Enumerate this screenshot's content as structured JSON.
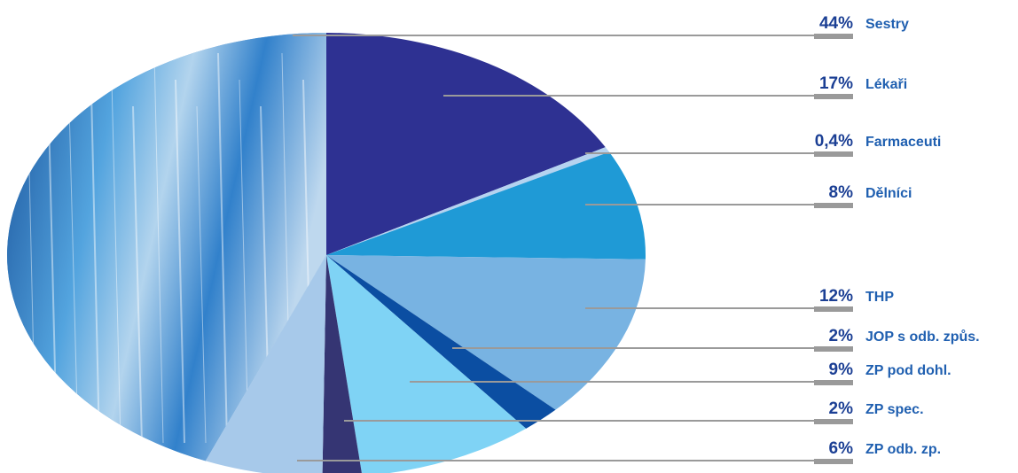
{
  "chart_data": {
    "type": "pie",
    "categories": [
      "Sestry",
      "Lékaři",
      "Farmaceuti",
      "Dělníci",
      "THP",
      "JOP s odb. způs.",
      "ZP pod dohl.",
      "ZP spec.",
      "ZP odb. zp."
    ],
    "values": [
      44,
      17,
      0.4,
      8,
      12,
      2,
      9,
      2,
      6
    ],
    "value_labels": [
      "44%",
      "17%",
      "0,4%",
      "8%",
      "12%",
      "2%",
      "9%",
      "2%",
      "6%"
    ],
    "colors": [
      "#3f86c8",
      "#2e3192",
      "#b5d3f0",
      "#1f9ad6",
      "#78b3e2",
      "#0b4ea2",
      "#7fd3f5",
      "#353573",
      "#a7c9ea"
    ]
  }
}
